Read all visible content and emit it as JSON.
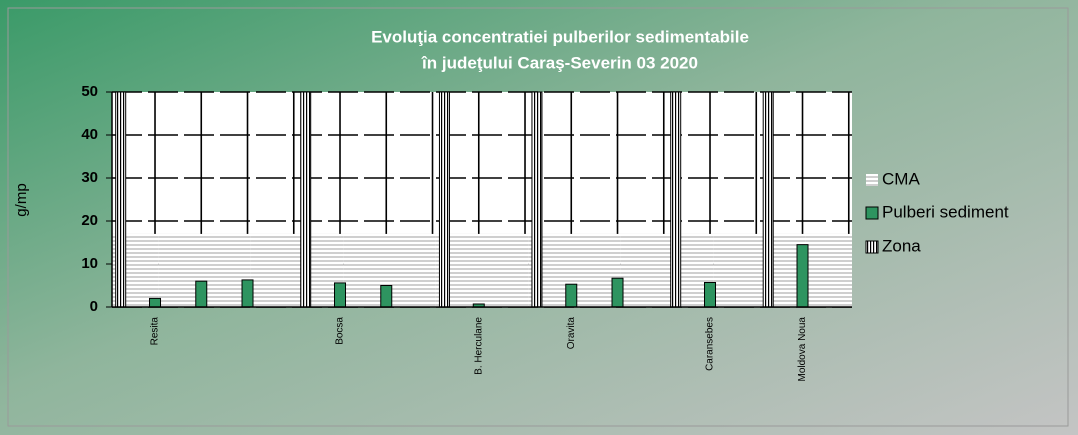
{
  "chart_data": {
    "type": "bar",
    "title": [
      "Evoluţia concentratiei  pulberilor sedimentabile",
      "în judeţului Caraş-Severin 03 2020"
    ],
    "y_label": "g/mp",
    "categories": [
      "Resita",
      null,
      null,
      null,
      "Bocsa",
      null,
      null,
      "B. Herculane",
      null,
      "Oravita",
      null,
      null,
      "Caransebes",
      null,
      "Moldova Noua",
      null
    ],
    "series": [
      {
        "name": "CMA",
        "color": "#d9d9d9",
        "values": [
          17,
          17,
          17,
          17,
          17,
          17,
          17,
          17,
          17,
          17,
          17,
          17,
          17,
          17,
          17,
          17
        ]
      },
      {
        "name": "Pulberi sediment",
        "color": "#2e9460",
        "values": [
          2,
          6,
          6.3,
          null,
          5.6,
          5,
          null,
          0.7,
          null,
          5.3,
          6.7,
          null,
          5.7,
          null,
          14.5,
          null
        ]
      },
      {
        "name": "Zona",
        "color": "#ffffff",
        "values": [
          50,
          null,
          null,
          null,
          50,
          null,
          null,
          50,
          null,
          50,
          null,
          null,
          50,
          null,
          50,
          null
        ]
      }
    ],
    "ylim": [
      0,
      50
    ],
    "yticks": [
      0,
      10,
      20,
      30,
      40,
      50
    ],
    "grid": true,
    "legend": "right"
  }
}
